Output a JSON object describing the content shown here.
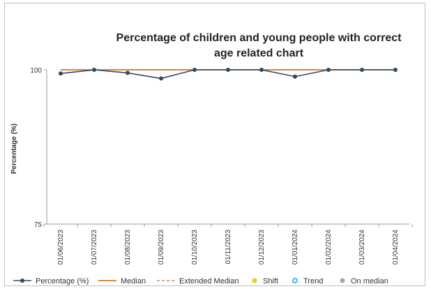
{
  "chart_data": {
    "type": "line",
    "title_lines": [
      "Percentage of children and young people with correct",
      "age related chart"
    ],
    "ylabel": "Percentage (%)",
    "xlabel": "",
    "ylim": [
      75,
      100
    ],
    "yticks": [
      "75",
      "100"
    ],
    "categories": [
      "01/06/2023",
      "01/07/2023",
      "01/08/2023",
      "01/09/2023",
      "01/10/2023",
      "01/11/2023",
      "01/12/2023",
      "01/01/2024",
      "01/02/2024",
      "01/03/2024",
      "01/04/2024"
    ],
    "series": [
      {
        "name": "Percentage (%)",
        "values": [
          99.4,
          100,
          99.5,
          98.6,
          100,
          100,
          100,
          98.9,
          100,
          100,
          100
        ],
        "color": "#2e4a6b"
      },
      {
        "name": "Median",
        "values": [
          100,
          100,
          100,
          100,
          100,
          100,
          100,
          100,
          100,
          100,
          100
        ],
        "color": "#d4883a"
      }
    ],
    "legend": [
      {
        "label": "Percentage (%)",
        "kind": "line-marker",
        "color": "#2e4a6b"
      },
      {
        "label": "Median",
        "kind": "line",
        "color": "#d4883a"
      },
      {
        "label": "Extended Median",
        "kind": "dashed",
        "color": "#d4883a"
      },
      {
        "label": "Shift",
        "kind": "dot",
        "color": "#f5c518"
      },
      {
        "label": "Trend",
        "kind": "ring",
        "color": "#3fb6e8"
      },
      {
        "label": "On median",
        "kind": "dot",
        "color": "#a6a6a6"
      }
    ],
    "legend_position": "bottom",
    "grid": false
  }
}
